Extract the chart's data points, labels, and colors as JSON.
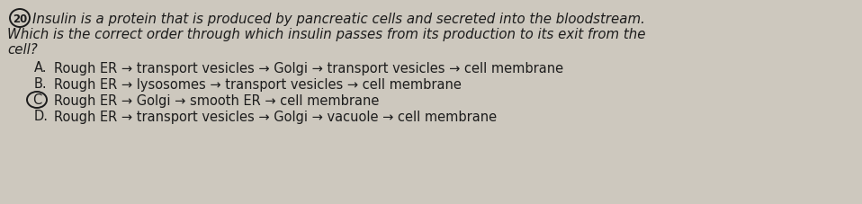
{
  "background_color": "#cdc8be",
  "question_number": "20",
  "header_line1": "Insulin is a protein that is produced by pancreatic cells and secreted into the bloodstream.",
  "header_line2": "Which is the correct order through which insulin passes from its production to its exit from the",
  "header_line3": "cell?",
  "options": [
    {
      "letter": "A.",
      "text": "Rough ER → transport vesicles → Golgi → transport vesicles → cell membrane",
      "circled": false
    },
    {
      "letter": "B.",
      "text": "Rough ER → lysosomes → transport vesicles → cell membrane",
      "circled": false
    },
    {
      "letter": "C",
      "text": "Rough ER → Golgi → smooth ER → cell membrane",
      "circled": true
    },
    {
      "letter": "D.",
      "text": "Rough ER → transport vesicles → Golgi → vacuole → cell membrane",
      "circled": false
    }
  ],
  "text_color": "#1c1c1c",
  "fs_header": 10.8,
  "fs_options": 10.5
}
